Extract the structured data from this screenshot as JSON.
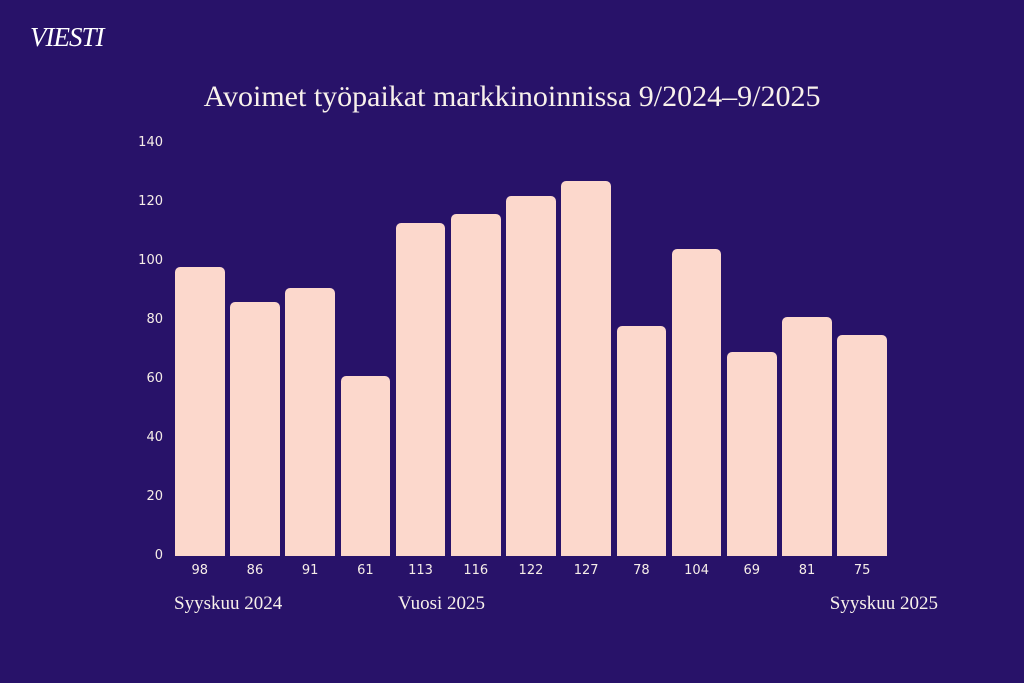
{
  "brand": {
    "logo_text": "VIESTI"
  },
  "chart_data": {
    "type": "bar",
    "title": "Avoimet työpaikat markkinoinnissa 9/2024–9/2025",
    "values": [
      98,
      86,
      91,
      61,
      113,
      116,
      122,
      127,
      78,
      104,
      69,
      81,
      75
    ],
    "y_ticks": [
      0,
      20,
      40,
      60,
      80,
      100,
      120,
      140
    ],
    "ylim": [
      0,
      140
    ],
    "grid": false,
    "legend": false,
    "x_axis_labels": {
      "left": "Syyskuu 2024",
      "center": "Vuosi 2025",
      "right": "Syyskuu 2025"
    },
    "colors": {
      "background": "#281269",
      "bar": "#FCD8CC",
      "title_text": "#F8F1EB",
      "tick_text": "#F6EDE8",
      "logo_text": "#FFFFFF"
    }
  }
}
